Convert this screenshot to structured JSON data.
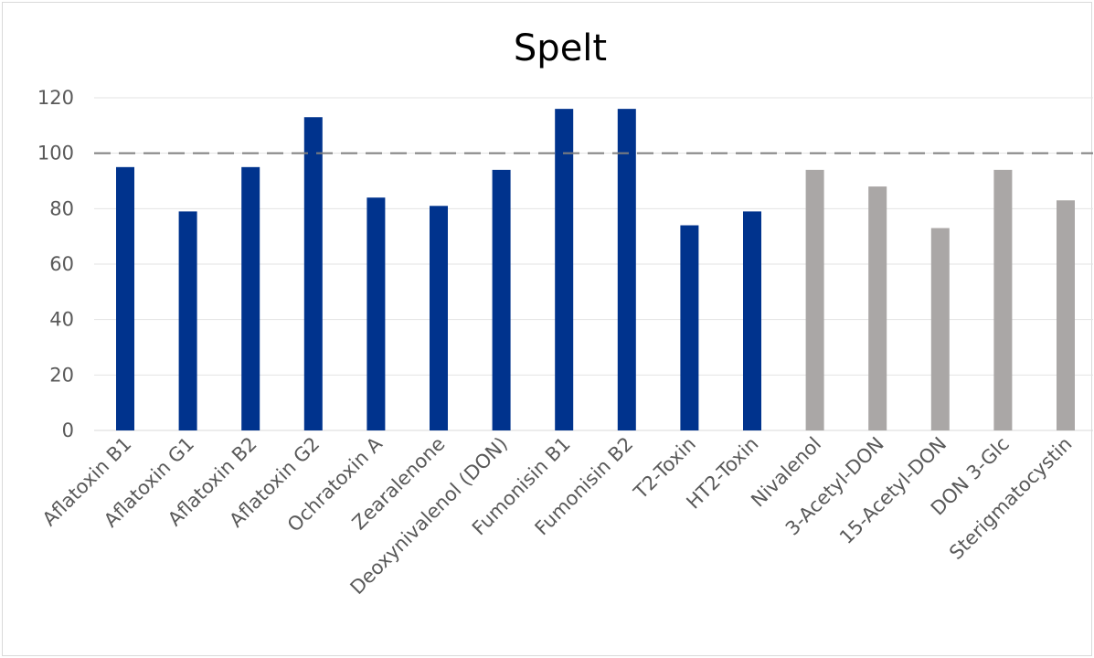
{
  "chart_data": {
    "type": "bar",
    "title": "Spelt",
    "xlabel": "",
    "ylabel": "",
    "ylim": [
      0,
      120
    ],
    "yticks": [
      "0",
      "20",
      "40",
      "60",
      "80",
      "100",
      "120"
    ],
    "grid": true,
    "legend": "none",
    "reference_line": {
      "value": 100,
      "style": "dashed"
    },
    "categories": [
      "Aflatoxin B1",
      "Aflatoxin G1",
      "Aflatoxin B2",
      "Aflatoxin G2",
      "Ochratoxin A",
      "Zearalenone",
      "Deoxynivalenol (DON)",
      "Fumonisin B1",
      "Fumonisin B2",
      "T2-Toxin",
      "HT2-Toxin",
      "Nivalenol",
      "3-Acetyl-DON",
      "15-Acetyl-DON",
      "DON 3-Glc",
      "Sterigmatocystin"
    ],
    "values": [
      95,
      79,
      95,
      113,
      84,
      81,
      94,
      116,
      116,
      74,
      79,
      94,
      88,
      73,
      94,
      83
    ],
    "bar_colors": [
      "#00338d",
      "#00338d",
      "#00338d",
      "#00338d",
      "#00338d",
      "#00338d",
      "#00338d",
      "#00338d",
      "#00338d",
      "#00338d",
      "#00338d",
      "#aaa7a6",
      "#aaa7a6",
      "#aaa7a6",
      "#aaa7a6",
      "#aaa7a6"
    ]
  }
}
